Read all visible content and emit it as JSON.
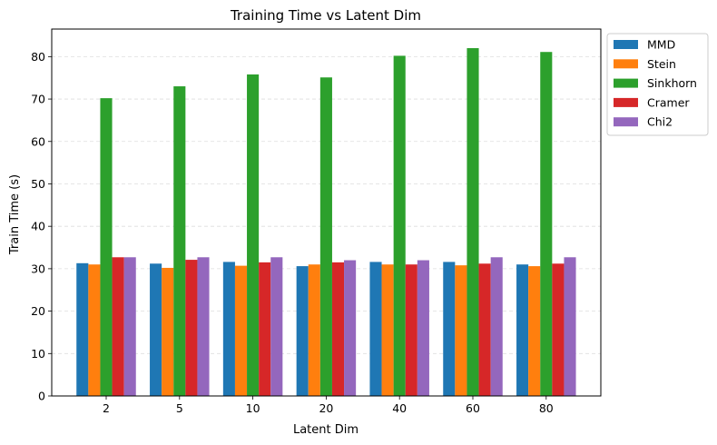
{
  "chart_data": {
    "type": "bar",
    "title": "Training Time vs Latent Dim",
    "xlabel": "Latent Dim",
    "ylabel": "Train Time (s)",
    "categories": [
      "2",
      "5",
      "10",
      "20",
      "40",
      "60",
      "80"
    ],
    "ylim": [
      0,
      86.5
    ],
    "yticks": [
      0,
      10,
      20,
      30,
      40,
      50,
      60,
      70,
      80
    ],
    "grid": "y-dashed",
    "legend_position": "outside-top-right",
    "series": [
      {
        "name": "MMD",
        "color": "#1f77b4",
        "values": [
          31.3,
          31.2,
          31.6,
          30.6,
          31.6,
          31.6,
          31.0
        ]
      },
      {
        "name": "Stein",
        "color": "#ff7f0e",
        "values": [
          31.0,
          30.2,
          30.7,
          31.0,
          31.0,
          30.8,
          30.6
        ]
      },
      {
        "name": "Sinkhorn",
        "color": "#2ca02c",
        "values": [
          70.2,
          73.0,
          75.8,
          75.1,
          80.2,
          82.0,
          81.1
        ]
      },
      {
        "name": "Cramer",
        "color": "#d62728",
        "values": [
          32.7,
          32.1,
          31.5,
          31.5,
          31.0,
          31.2,
          31.2
        ]
      },
      {
        "name": "Chi2",
        "color": "#9467bd",
        "values": [
          32.7,
          32.7,
          32.7,
          32.0,
          32.0,
          32.7,
          32.7
        ]
      }
    ]
  }
}
